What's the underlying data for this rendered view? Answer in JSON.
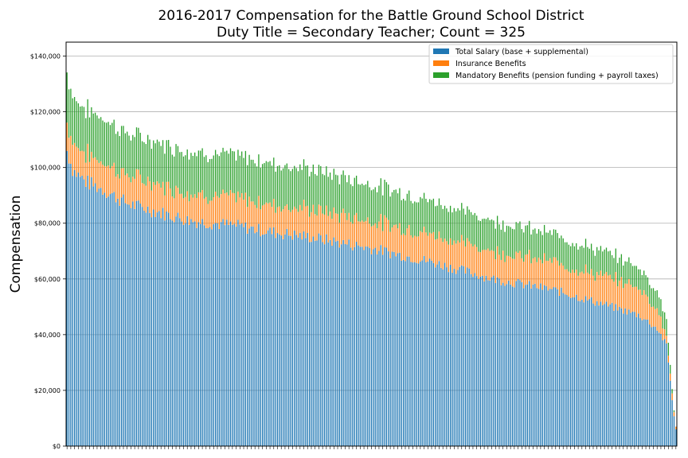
{
  "chart_data": {
    "type": "bar",
    "stacked": true,
    "title": "2016-2017 Compensation for the Battle Ground School District",
    "subtitle": "Duty Title = Secondary Teacher; Count = 325",
    "xlabel": "",
    "ylabel": "Compensation",
    "ylim": [
      0,
      145000
    ],
    "yticks": [
      0,
      20000,
      40000,
      60000,
      80000,
      100000,
      120000,
      140000
    ],
    "ytick_labels": [
      "$0",
      "$20,000",
      "$40,000",
      "$60,000",
      "$80,000",
      "$100,000",
      "$120,000",
      "$140,000"
    ],
    "grid": "horizontal",
    "legend_position": "top-right",
    "count": 325,
    "sorted_by": "total compensation, descending",
    "series": [
      {
        "name": "Total Salary (base + supplemental)",
        "color": "#1f77b4",
        "profile_x": [
          0,
          0.01,
          0.03,
          0.06,
          0.1,
          0.15,
          0.2,
          0.28,
          0.33,
          0.4,
          0.5,
          0.6,
          0.7,
          0.8,
          0.88,
          0.94,
          0.97,
          0.985,
          0.995,
          1.0
        ],
        "profile_values": [
          106000,
          99000,
          95000,
          92000,
          87000,
          84000,
          81000,
          79000,
          77000,
          75000,
          71000,
          66000,
          60000,
          56000,
          51000,
          47000,
          42000,
          36000,
          14000,
          6000
        ]
      },
      {
        "name": "Insurance Benefits",
        "color": "#ff7f0e",
        "profile_x": [
          0,
          0.94,
          0.97,
          0.985,
          0.995,
          1.0
        ],
        "profile_values": [
          10000,
          10000,
          7000,
          3000,
          2000,
          1000
        ]
      },
      {
        "name": "Mandatory Benefits (pension funding + payroll taxes)",
        "color": "#2ca02c",
        "profile_x": [
          0,
          0.005,
          0.02,
          0.05,
          0.1,
          0.2,
          0.3,
          0.4,
          0.5,
          0.6,
          0.7,
          0.8,
          0.9,
          0.95,
          0.985,
          0.995,
          1.0
        ],
        "profile_values": [
          18000,
          17000,
          16000,
          16000,
          15000,
          15000,
          15000,
          14500,
          13000,
          12000,
          11000,
          10000,
          8500,
          7000,
          6000,
          1000,
          0
        ]
      }
    ]
  }
}
